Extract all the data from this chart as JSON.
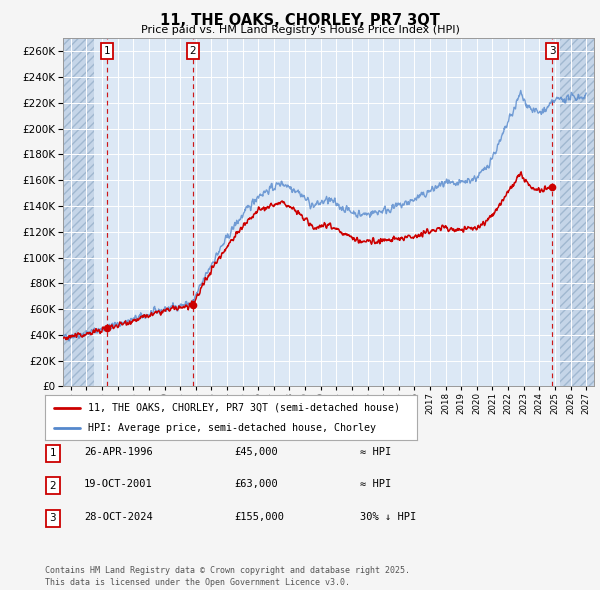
{
  "title": "11, THE OAKS, CHORLEY, PR7 3QT",
  "subtitle": "Price paid vs. HM Land Registry's House Price Index (HPI)",
  "ylim": [
    0,
    270000
  ],
  "yticks": [
    0,
    20000,
    40000,
    60000,
    80000,
    100000,
    120000,
    140000,
    160000,
    180000,
    200000,
    220000,
    240000,
    260000
  ],
  "xlim_start": 1993.5,
  "xlim_end": 2027.5,
  "hatch_left_end": 1995.5,
  "hatch_right_start": 2025.3,
  "plot_bg": "#dce8f5",
  "hatch_bg": "#c5d5e8",
  "grid_color": "#ffffff",
  "sale_dates": [
    1996.32,
    2001.8,
    2024.83
  ],
  "sale_prices": [
    45000,
    63000,
    155000
  ],
  "sale_labels": [
    "1",
    "2",
    "3"
  ],
  "legend_label_red": "11, THE OAKS, CHORLEY, PR7 3QT (semi-detached house)",
  "legend_label_blue": "HPI: Average price, semi-detached house, Chorley",
  "table_rows": [
    [
      "1",
      "26-APR-1996",
      "£45,000",
      "≈ HPI"
    ],
    [
      "2",
      "19-OCT-2001",
      "£63,000",
      "≈ HPI"
    ],
    [
      "3",
      "28-OCT-2024",
      "£155,000",
      "30% ↓ HPI"
    ]
  ],
  "footer": "Contains HM Land Registry data © Crown copyright and database right 2025.\nThis data is licensed under the Open Government Licence v3.0.",
  "hpi_color": "#5588cc",
  "sale_color": "#cc0000",
  "dashed_color": "#cc0000",
  "fig_bg": "#f5f5f5"
}
